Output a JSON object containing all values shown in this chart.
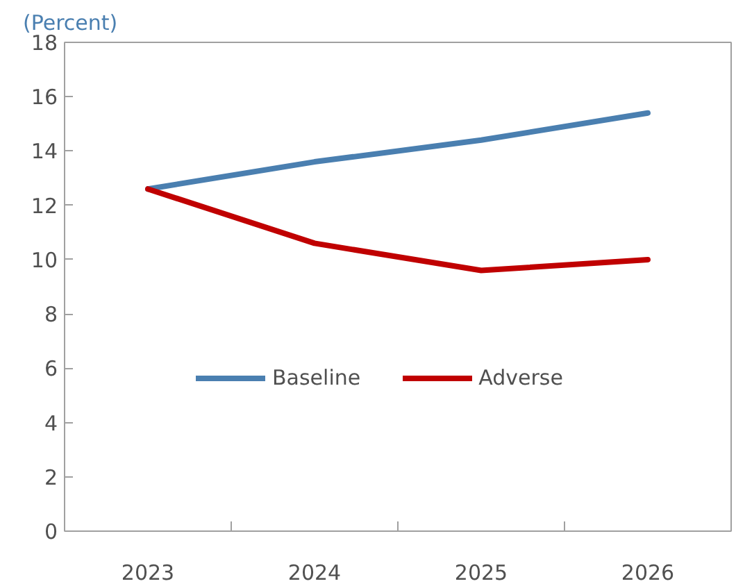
{
  "chart_data": {
    "type": "line",
    "title": "(Percent)",
    "categories": [
      "2023",
      "2024",
      "2025",
      "2026"
    ],
    "series": [
      {
        "name": "Baseline",
        "color": "#4a7fb0",
        "values": [
          12.6,
          13.6,
          14.4,
          15.4
        ]
      },
      {
        "name": "Adverse",
        "color": "#c00000",
        "values": [
          12.6,
          10.6,
          9.6,
          10.0
        ]
      }
    ],
    "ylim": [
      0,
      18
    ],
    "yticks": [
      0,
      2,
      4,
      6,
      8,
      10,
      12,
      14,
      16,
      18
    ],
    "grid": false,
    "legend": "center",
    "marker": "none",
    "line_style": "solid"
  }
}
